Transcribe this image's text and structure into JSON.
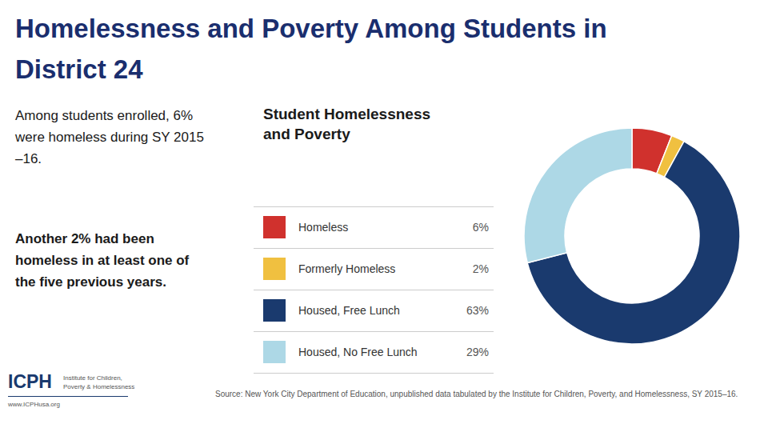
{
  "chart_data": {
    "type": "pie",
    "title": "Homelessness and Poverty Among Students in\nDistrict 24",
    "subtitle": "Student Homelessness\nand Poverty",
    "categories": [
      "Homeless",
      "Formerly Homeless",
      "Housed, Free Lunch",
      "Housed, No Free Lunch"
    ],
    "values": [
      6,
      2,
      63,
      29
    ],
    "value_labels": [
      "6%",
      "2%",
      "63%",
      "29%"
    ],
    "colors": [
      "#d0312d",
      "#f0c040",
      "#1a3a6e",
      "#add8e6"
    ],
    "annotations": [
      "Among students enrolled, 6%\nwere homeless during SY 2015\n–16.",
      "Another 2% had been\nhomeless in at least one of\nthe five previous years.",
      "Source: New York City Department of Education, unpublished data tabulated by the Institute for Children, Poverty, and Homelessness, SY 2015–16.",
      "ICPH",
      "Institute for Children,\nPoverty & Homelessness",
      "www.ICPHusa.org"
    ]
  }
}
